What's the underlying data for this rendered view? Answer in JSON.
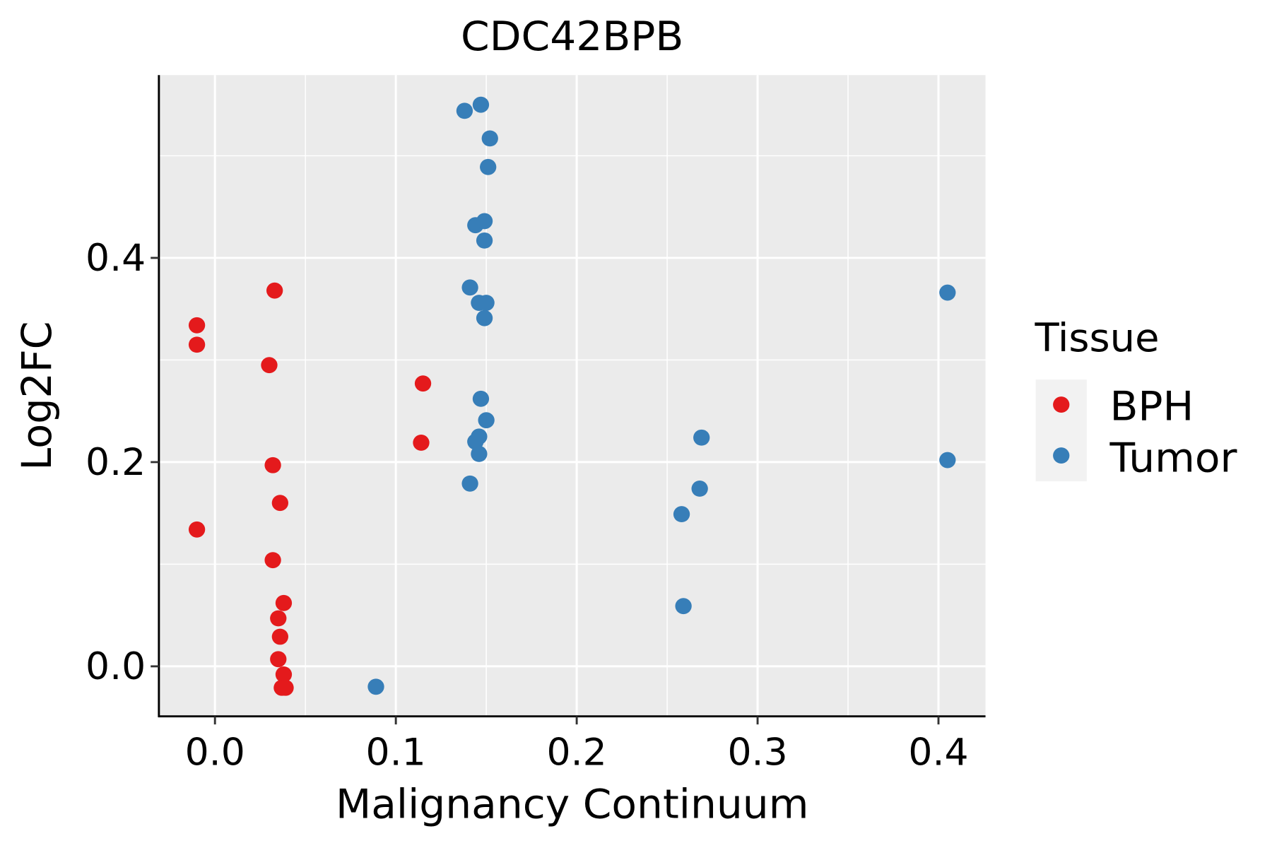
{
  "chart_data": {
    "type": "scatter",
    "title": "CDC42BPB",
    "xlabel": "Malignancy Continuum",
    "ylabel": "Log2FC",
    "xlim": [
      -0.031,
      0.426
    ],
    "ylim": [
      -0.049,
      0.579
    ],
    "xticks": [
      0.0,
      0.1,
      0.2,
      0.3,
      0.4
    ],
    "xtick_labels": [
      "0.0",
      "0.1",
      "0.2",
      "0.3",
      "0.4"
    ],
    "yticks": [
      0.0,
      0.2,
      0.4
    ],
    "ytick_labels": [
      "0.0",
      "0.2",
      "0.4"
    ],
    "grid": true,
    "legend": {
      "title": "Tissue",
      "placement": "right"
    },
    "series": [
      {
        "name": "BPH",
        "color": "#E41A1C",
        "points": [
          [
            -0.01,
            0.334
          ],
          [
            -0.01,
            0.315
          ],
          [
            0.033,
            0.368
          ],
          [
            0.03,
            0.295
          ],
          [
            0.115,
            0.277
          ],
          [
            0.114,
            0.219
          ],
          [
            0.032,
            0.197
          ],
          [
            0.036,
            0.16
          ],
          [
            -0.01,
            0.134
          ],
          [
            0.032,
            0.104
          ],
          [
            0.038,
            0.062
          ],
          [
            0.035,
            0.047
          ],
          [
            0.036,
            0.029
          ],
          [
            0.035,
            0.007
          ],
          [
            0.038,
            -0.008
          ],
          [
            0.037,
            -0.021
          ],
          [
            0.039,
            -0.021
          ]
        ]
      },
      {
        "name": "Tumor",
        "color": "#377EB8",
        "points": [
          [
            0.138,
            0.544
          ],
          [
            0.147,
            0.55
          ],
          [
            0.152,
            0.517
          ],
          [
            0.151,
            0.489
          ],
          [
            0.144,
            0.432
          ],
          [
            0.149,
            0.436
          ],
          [
            0.149,
            0.417
          ],
          [
            0.141,
            0.371
          ],
          [
            0.146,
            0.356
          ],
          [
            0.15,
            0.356
          ],
          [
            0.149,
            0.341
          ],
          [
            0.405,
            0.366
          ],
          [
            0.147,
            0.262
          ],
          [
            0.15,
            0.241
          ],
          [
            0.146,
            0.225
          ],
          [
            0.144,
            0.22
          ],
          [
            0.146,
            0.208
          ],
          [
            0.141,
            0.179
          ],
          [
            0.269,
            0.224
          ],
          [
            0.268,
            0.174
          ],
          [
            0.258,
            0.149
          ],
          [
            0.405,
            0.202
          ],
          [
            0.259,
            0.059
          ],
          [
            0.089,
            -0.02
          ]
        ]
      }
    ]
  }
}
